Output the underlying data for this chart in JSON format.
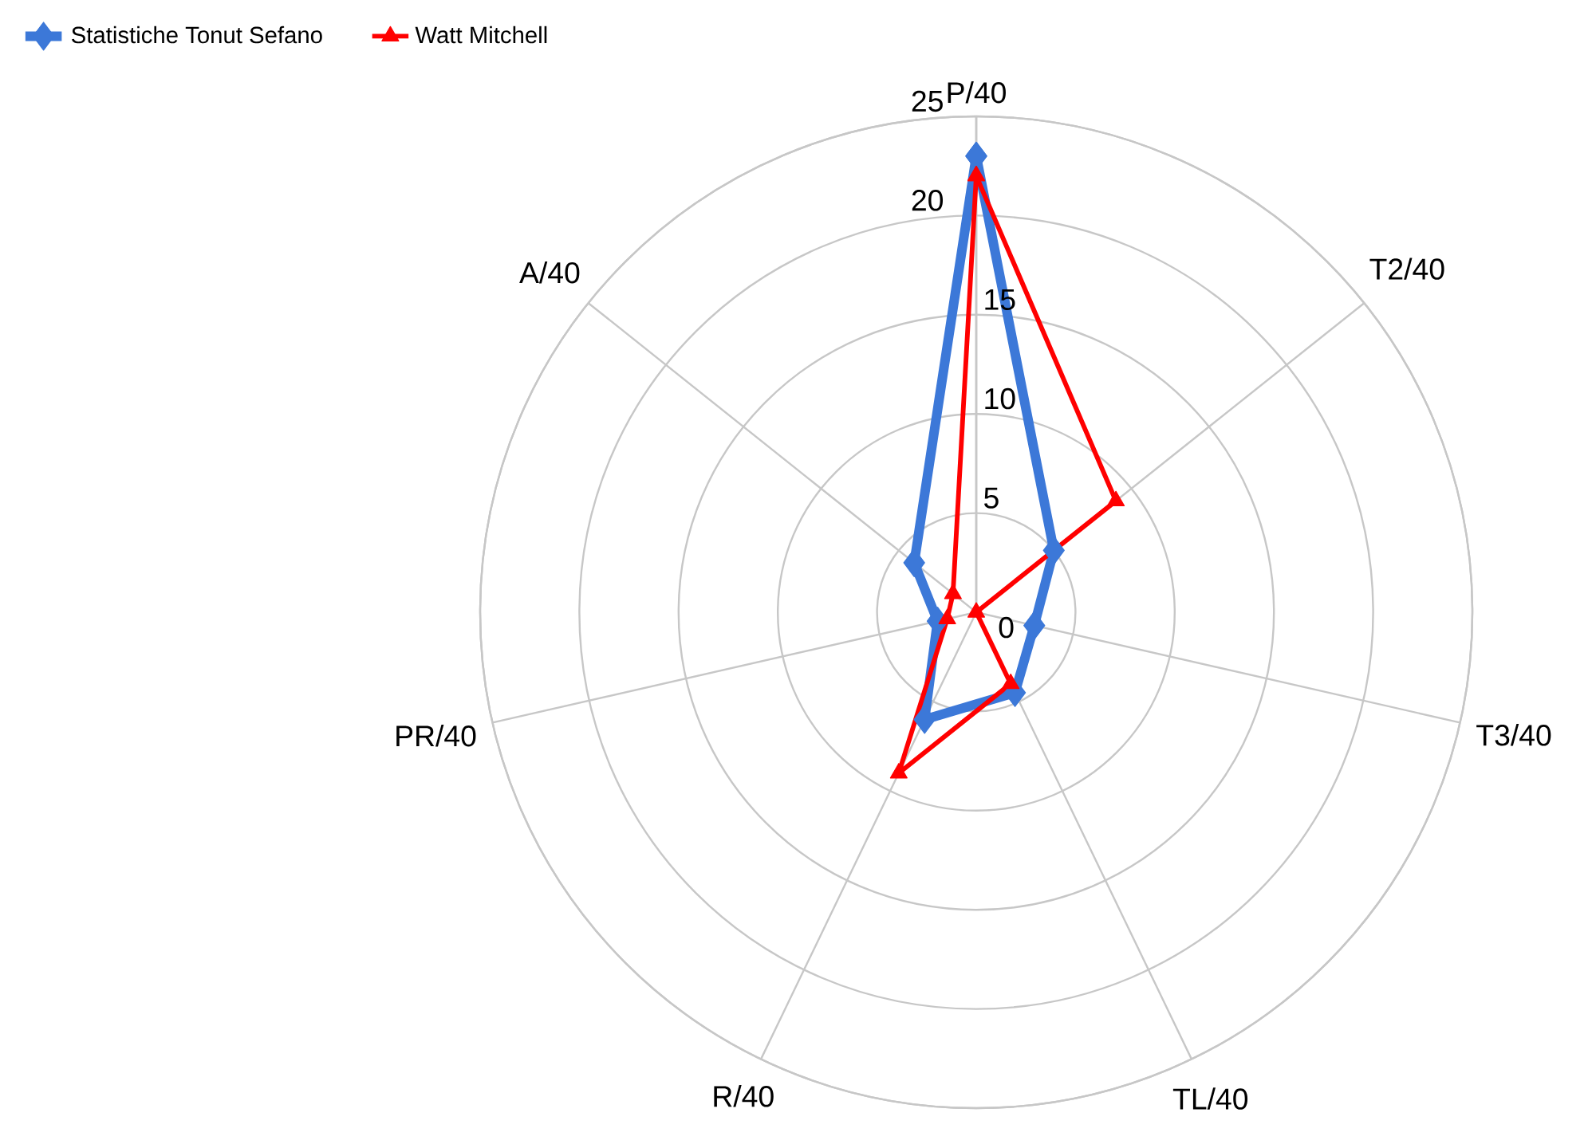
{
  "chart_data": {
    "type": "radar",
    "categories": [
      "P/40",
      "T2/40",
      "T3/40",
      "TL/40",
      "R/40",
      "PR/40",
      "A/40"
    ],
    "series": [
      {
        "name": "Statistiche Tonut Sefano",
        "color": "#3c78d8",
        "marker": "diamond",
        "values": [
          23,
          5,
          3,
          4.5,
          6,
          2,
          4
        ]
      },
      {
        "name": "Watt Mitchell",
        "color": "#ff0000",
        "marker": "triangle",
        "values": [
          22,
          9,
          0,
          4,
          9,
          1.5,
          1.5
        ]
      }
    ],
    "ylim": [
      0,
      25
    ],
    "yticks": [
      0,
      5,
      10,
      15,
      20,
      25
    ],
    "grid": true,
    "legend": "top left"
  }
}
